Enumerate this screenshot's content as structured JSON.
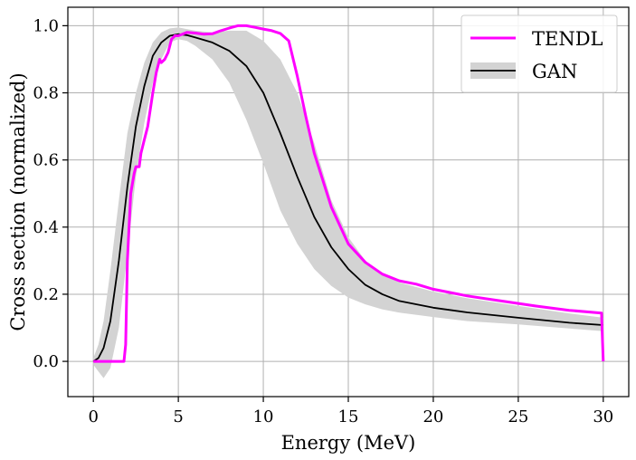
{
  "chart_data": {
    "type": "line",
    "title": "",
    "xlabel": "Energy (MeV)",
    "ylabel": "Cross section (normalized)",
    "xlim": [
      -1.5,
      31.5
    ],
    "ylim": [
      -0.105,
      1.055
    ],
    "xticks": [
      0,
      5,
      10,
      15,
      20,
      25,
      30
    ],
    "yticks": [
      0.0,
      0.2,
      0.4,
      0.6,
      0.8,
      1.0
    ],
    "xtick_labels": [
      "0",
      "5",
      "10",
      "15",
      "20",
      "25",
      "30"
    ],
    "ytick_labels": [
      "0.0",
      "0.2",
      "0.4",
      "0.6",
      "0.8",
      "1.0"
    ],
    "grid": true,
    "legend_position": "top-right",
    "series": [
      {
        "name": "TENDL",
        "kind": "line",
        "color": "#ff00ff",
        "x": [
          0,
          1.8,
          1.9,
          2.0,
          2.2,
          2.4,
          2.5,
          2.7,
          2.8,
          3.0,
          3.2,
          3.5,
          3.7,
          3.9,
          4.0,
          4.2,
          4.4,
          4.6,
          4.8,
          5.0,
          5.5,
          6.0,
          6.5,
          7.0,
          7.5,
          8.0,
          8.5,
          9.0,
          9.5,
          10.0,
          10.5,
          11.0,
          11.5,
          12.0,
          12.5,
          13.0,
          14.0,
          15.0,
          16.0,
          17.0,
          18.0,
          19.0,
          20.0,
          22.0,
          24.0,
          26.0,
          28.0,
          29.9,
          30.0
        ],
        "y": [
          0.0,
          0.0,
          0.05,
          0.3,
          0.5,
          0.56,
          0.58,
          0.58,
          0.62,
          0.66,
          0.7,
          0.8,
          0.86,
          0.9,
          0.89,
          0.9,
          0.92,
          0.96,
          0.97,
          0.97,
          0.98,
          0.978,
          0.975,
          0.976,
          0.985,
          0.993,
          1.0,
          1.0,
          0.995,
          0.99,
          0.985,
          0.977,
          0.955,
          0.85,
          0.73,
          0.62,
          0.46,
          0.35,
          0.295,
          0.26,
          0.24,
          0.23,
          0.215,
          0.195,
          0.18,
          0.165,
          0.152,
          0.144,
          0.0
        ]
      },
      {
        "name": "GAN",
        "kind": "line_with_band",
        "color": "#000000",
        "band_color": "#d3d3d3",
        "x": [
          0,
          0.3,
          0.6,
          1.0,
          1.5,
          2.0,
          2.5,
          3.0,
          3.5,
          4.0,
          4.5,
          5.0,
          5.5,
          6.0,
          7.0,
          8.0,
          9.0,
          10.0,
          11.0,
          12.0,
          13.0,
          14.0,
          15.0,
          16.0,
          17.0,
          18.0,
          20.0,
          22.0,
          25.0,
          28.0,
          30.0
        ],
        "y": [
          0.0,
          0.01,
          0.04,
          0.12,
          0.3,
          0.52,
          0.7,
          0.82,
          0.91,
          0.95,
          0.97,
          0.975,
          0.972,
          0.965,
          0.95,
          0.925,
          0.88,
          0.8,
          0.68,
          0.55,
          0.43,
          0.34,
          0.275,
          0.228,
          0.2,
          0.18,
          0.16,
          0.146,
          0.13,
          0.115,
          0.108
        ],
        "band_lower": [
          -0.01,
          -0.03,
          -0.05,
          -0.02,
          0.1,
          0.32,
          0.55,
          0.71,
          0.83,
          0.9,
          0.95,
          0.96,
          0.955,
          0.94,
          0.9,
          0.83,
          0.72,
          0.59,
          0.45,
          0.35,
          0.275,
          0.225,
          0.19,
          0.17,
          0.155,
          0.145,
          0.132,
          0.12,
          0.11,
          0.098,
          0.09
        ],
        "band_upper": [
          0.01,
          0.05,
          0.12,
          0.27,
          0.48,
          0.68,
          0.8,
          0.89,
          0.95,
          0.98,
          0.992,
          0.995,
          0.99,
          0.985,
          0.98,
          0.985,
          0.985,
          0.955,
          0.9,
          0.8,
          0.65,
          0.48,
          0.37,
          0.3,
          0.26,
          0.235,
          0.208,
          0.188,
          0.165,
          0.143,
          0.13
        ]
      }
    ]
  }
}
